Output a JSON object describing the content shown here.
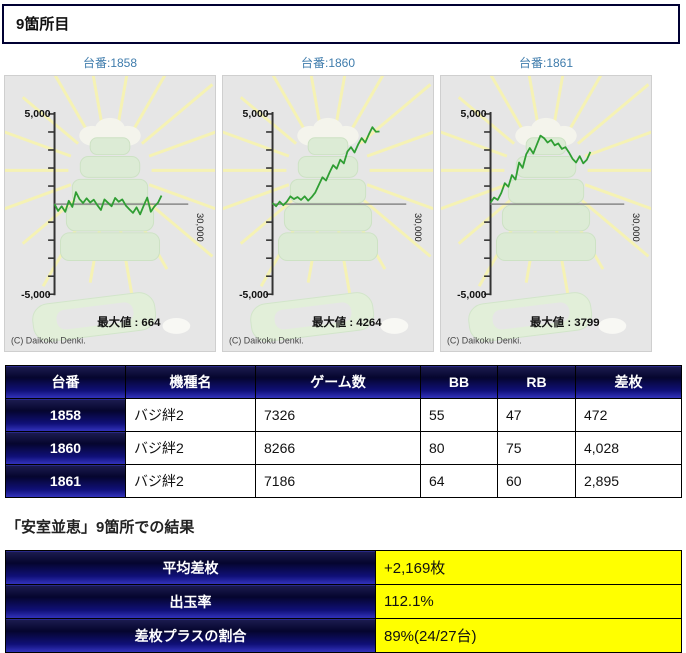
{
  "page": {
    "title": "9箇所目"
  },
  "colors": {
    "navy": "#000033",
    "value_yellow": "#ffff00",
    "line_green": "#2f9e33",
    "machine_label_blue": "#3f7cac"
  },
  "chart_axis": {
    "y_top": "5,000",
    "y_bottom": "-5,000",
    "x_end": "30,000"
  },
  "chart_data": [
    {
      "type": "line",
      "dai_label": "台番:1858",
      "max_label": "最大値 : 664",
      "copyright": "(C) Daikoku Denki.",
      "ylim": [
        -5000,
        5000
      ],
      "xlim": [
        0,
        30000
      ],
      "line_color": "#2f9e33",
      "points": [
        [
          0,
          0
        ],
        [
          800,
          -380
        ],
        [
          1600,
          -120
        ],
        [
          2400,
          -430
        ],
        [
          3200,
          180
        ],
        [
          4000,
          -160
        ],
        [
          4800,
          664
        ],
        [
          5600,
          280
        ],
        [
          6400,
          60
        ],
        [
          7200,
          320
        ],
        [
          8000,
          90
        ],
        [
          8800,
          240
        ],
        [
          9600,
          -60
        ],
        [
          10400,
          -330
        ],
        [
          11200,
          260
        ],
        [
          12000,
          70
        ],
        [
          12800,
          -120
        ],
        [
          13600,
          340
        ],
        [
          14400,
          130
        ],
        [
          15200,
          260
        ],
        [
          16000,
          -80
        ],
        [
          16800,
          -290
        ],
        [
          17600,
          -490
        ],
        [
          18400,
          -180
        ],
        [
          19200,
          -570
        ],
        [
          20000,
          -90
        ],
        [
          20800,
          360
        ],
        [
          21600,
          -430
        ],
        [
          22400,
          -130
        ],
        [
          23200,
          70
        ],
        [
          24000,
          472
        ]
      ]
    },
    {
      "type": "line",
      "dai_label": "台番:1860",
      "max_label": "最大値 : 4264",
      "copyright": "(C) Daikoku Denki.",
      "ylim": [
        -5000,
        5000
      ],
      "xlim": [
        0,
        30000
      ],
      "line_color": "#2f9e33",
      "points": [
        [
          0,
          60
        ],
        [
          800,
          -120
        ],
        [
          1600,
          140
        ],
        [
          2400,
          -60
        ],
        [
          3200,
          130
        ],
        [
          4000,
          430
        ],
        [
          4800,
          280
        ],
        [
          5600,
          390
        ],
        [
          6400,
          230
        ],
        [
          7200,
          430
        ],
        [
          8000,
          190
        ],
        [
          8800,
          390
        ],
        [
          9600,
          650
        ],
        [
          10400,
          1070
        ],
        [
          11200,
          1490
        ],
        [
          12000,
          1310
        ],
        [
          12800,
          1760
        ],
        [
          13600,
          2160
        ],
        [
          14400,
          1960
        ],
        [
          15200,
          2460
        ],
        [
          16000,
          2260
        ],
        [
          16800,
          2910
        ],
        [
          17600,
          3160
        ],
        [
          18400,
          2860
        ],
        [
          19200,
          3310
        ],
        [
          20000,
          3660
        ],
        [
          20800,
          3410
        ],
        [
          21600,
          3860
        ],
        [
          22400,
          4264
        ],
        [
          23200,
          4010
        ],
        [
          24000,
          4028
        ]
      ]
    },
    {
      "type": "line",
      "dai_label": "台番:1861",
      "max_label": "最大値 : 3799",
      "copyright": "(C) Daikoku Denki.",
      "ylim": [
        -5000,
        5000
      ],
      "xlim": [
        0,
        30000
      ],
      "line_color": "#2f9e33",
      "points": [
        [
          0,
          80
        ],
        [
          800,
          360
        ],
        [
          1600,
          230
        ],
        [
          2400,
          610
        ],
        [
          3200,
          1160
        ],
        [
          4000,
          960
        ],
        [
          4800,
          1610
        ],
        [
          5600,
          1360
        ],
        [
          6400,
          2310
        ],
        [
          7200,
          2010
        ],
        [
          8000,
          2760
        ],
        [
          8800,
          3110
        ],
        [
          9600,
          2810
        ],
        [
          10400,
          3310
        ],
        [
          11200,
          3799
        ],
        [
          12000,
          3660
        ],
        [
          12800,
          3410
        ],
        [
          13600,
          3560
        ],
        [
          14400,
          3260
        ],
        [
          15200,
          3360
        ],
        [
          16000,
          3060
        ],
        [
          16800,
          3160
        ],
        [
          17600,
          2860
        ],
        [
          18400,
          2510
        ],
        [
          19200,
          2310
        ],
        [
          20000,
          2660
        ],
        [
          20800,
          2260
        ],
        [
          21600,
          2460
        ],
        [
          22400,
          2895
        ]
      ]
    }
  ],
  "table": {
    "headers": [
      "台番",
      "機種名",
      "ゲーム数",
      "BB",
      "RB",
      "差枚"
    ],
    "rows": [
      [
        "1858",
        "バジ絆2",
        "7326",
        "55",
        "47",
        "472"
      ],
      [
        "1860",
        "バジ絆2",
        "8266",
        "80",
        "75",
        "4,028"
      ],
      [
        "1861",
        "バジ絆2",
        "7186",
        "64",
        "60",
        "2,895"
      ]
    ]
  },
  "result": {
    "heading": "「安室並恵」9箇所での結果",
    "summary": [
      {
        "label": "平均差枚",
        "value": "+2,169枚"
      },
      {
        "label": "出玉率",
        "value": "112.1%"
      },
      {
        "label": "差枚プラスの割合",
        "value": "89%(24/27台)"
      }
    ]
  }
}
